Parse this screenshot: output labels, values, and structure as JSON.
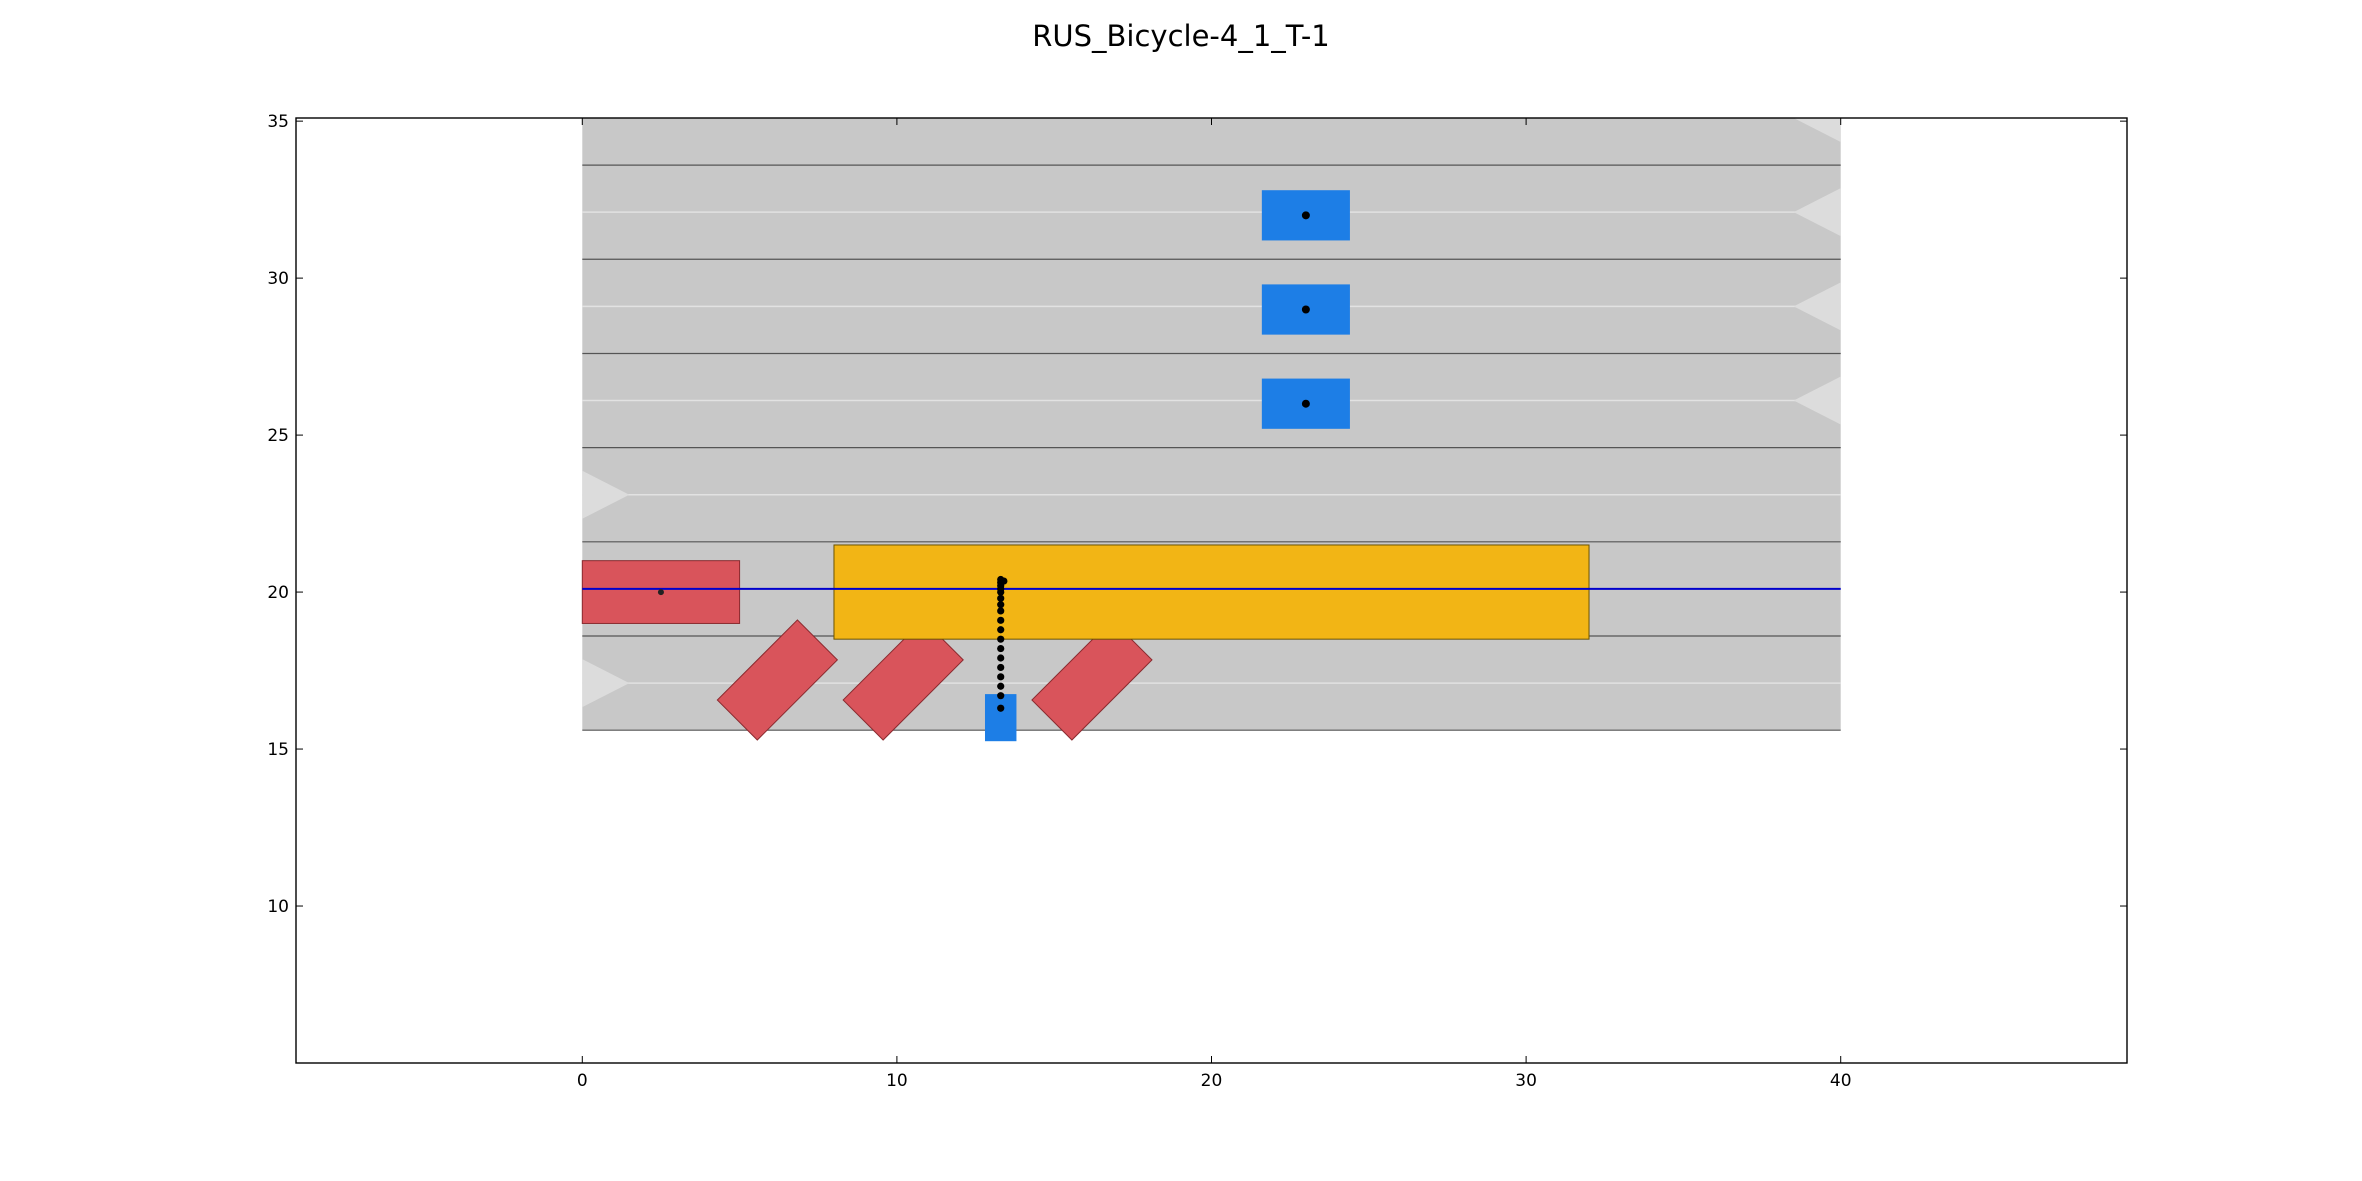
{
  "title": "RUS_Bicycle-4_1_T-1",
  "chart_data": {
    "type": "scatter",
    "xlim": [
      -9.1,
      49.1
    ],
    "ylim": [
      5.0,
      35.1
    ],
    "x_ticks": [
      0,
      10,
      20,
      30,
      40
    ],
    "y_ticks": [
      10,
      15,
      20,
      25,
      30,
      35
    ],
    "grid": false,
    "colors": {
      "road": "#c8c8c8",
      "lane_divider": "#555555",
      "lane_center": "#e2e2e2",
      "direction_arrow": "#dcdcdc",
      "ego_vehicle": "#1d7ee6",
      "obstacle_static": "#d9545b",
      "obstacle_bus": "#f2b515",
      "reference_path": "#0000cc",
      "trajectory": "#000000"
    },
    "road": {
      "x_min": 0,
      "x_max": 40,
      "y_min": 15.6,
      "y_max": 35.1
    },
    "lane_dividers_y": [
      15.6,
      18.6,
      21.6,
      24.6,
      27.6,
      30.6,
      33.6
    ],
    "lane_centers_y": [
      17.1,
      20.1,
      23.1,
      26.1,
      29.1,
      32.1
    ],
    "direction_arrows": [
      {
        "x": 0,
        "y": 17.1,
        "dir": "right"
      },
      {
        "x": 0,
        "y": 23.1,
        "dir": "right"
      },
      {
        "x": 40,
        "y": 26.1,
        "dir": "left"
      },
      {
        "x": 40,
        "y": 29.1,
        "dir": "left"
      },
      {
        "x": 40,
        "y": 32.1,
        "dir": "left"
      },
      {
        "x": 40,
        "y": 35.1,
        "dir": "left"
      }
    ],
    "reference_path": {
      "y": 20.1,
      "x_from": 0,
      "x_to": 40
    },
    "obstacles": [
      {
        "kind": "car",
        "cx": 2.5,
        "cy": 20.0,
        "length": 5.0,
        "width": 2.0,
        "angle": 0,
        "marker": true
      },
      {
        "kind": "car",
        "cx": 6.2,
        "cy": 17.2,
        "length": 3.6,
        "width": 1.8,
        "angle": -45,
        "marker": false
      },
      {
        "kind": "car",
        "cx": 10.2,
        "cy": 17.2,
        "length": 3.6,
        "width": 1.8,
        "angle": -45,
        "marker": false
      },
      {
        "kind": "car",
        "cx": 16.2,
        "cy": 17.2,
        "length": 3.6,
        "width": 1.8,
        "angle": -45,
        "marker": false
      },
      {
        "kind": "bus",
        "cx": 20.0,
        "cy": 20.0,
        "length": 24.0,
        "width": 3.0,
        "angle": 0,
        "marker": false
      }
    ],
    "ego_vehicles": [
      {
        "cx": 23.0,
        "cy": 32.0,
        "length": 2.8,
        "width": 1.6,
        "angle": 0,
        "marker": true
      },
      {
        "cx": 23.0,
        "cy": 29.0,
        "length": 2.8,
        "width": 1.6,
        "angle": 0,
        "marker": true
      },
      {
        "cx": 23.0,
        "cy": 26.0,
        "length": 2.8,
        "width": 1.6,
        "angle": 0,
        "marker": true
      },
      {
        "cx": 13.3,
        "cy": 16.0,
        "length": 1.0,
        "width": 1.5,
        "angle": 0,
        "marker": false
      }
    ],
    "trajectory": {
      "x": [
        13.3,
        13.3,
        13.3,
        13.3,
        13.3,
        13.3,
        13.3,
        13.3,
        13.3,
        13.3,
        13.3,
        13.3,
        13.3,
        13.3,
        13.3,
        13.3,
        13.3,
        13.3,
        13.4
      ],
      "y": [
        16.3,
        16.7,
        17.0,
        17.3,
        17.6,
        17.9,
        18.2,
        18.5,
        18.8,
        19.1,
        19.4,
        19.6,
        19.8,
        20.0,
        20.1,
        20.2,
        20.3,
        20.4,
        20.35
      ]
    }
  }
}
